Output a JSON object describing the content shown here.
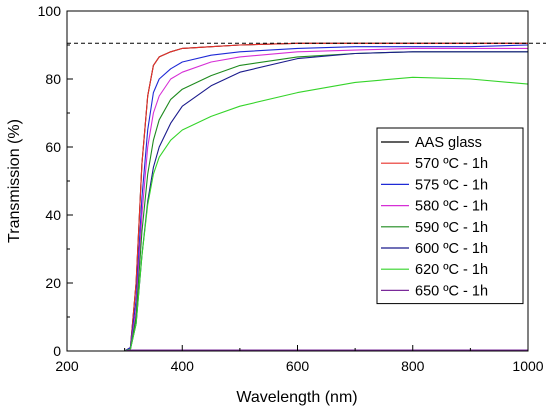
{
  "chart_data": {
    "type": "line",
    "xlabel": "Wavelength (nm)",
    "ylabel": "Transmission (%)",
    "xlim": [
      200,
      1000
    ],
    "ylim": [
      0,
      100
    ],
    "x_ticks": [
      200,
      400,
      600,
      800,
      1000
    ],
    "y_ticks": [
      0,
      20,
      40,
      60,
      80,
      100
    ],
    "reference_line": {
      "y": 90.5,
      "style": "dashed",
      "color": "#000000"
    },
    "legend_position": "right-center",
    "series": [
      {
        "name": "AAS glass",
        "color": "#000000",
        "x": [
          200,
          300,
          310,
          320,
          330,
          340,
          350,
          360,
          380,
          400,
          450,
          500,
          600,
          700,
          800,
          900,
          1000
        ],
        "y": [
          0,
          0,
          1,
          20,
          55,
          75,
          84,
          86.5,
          88,
          89,
          89.5,
          90,
          90.5,
          90.5,
          90.5,
          90.5,
          90.5
        ]
      },
      {
        "name": "570 ºC - 1h",
        "color": "#e8312a",
        "x": [
          200,
          300,
          310,
          320,
          330,
          340,
          350,
          360,
          380,
          400,
          450,
          500,
          600,
          700,
          800,
          900,
          1000
        ],
        "y": [
          0,
          0,
          1,
          20,
          55,
          75,
          84,
          86.5,
          88,
          89,
          89.5,
          90,
          90.5,
          90.5,
          90.5,
          90.5,
          90.5
        ]
      },
      {
        "name": "575 ºC - 1h",
        "color": "#1f2ad6",
        "x": [
          200,
          300,
          310,
          320,
          330,
          340,
          350,
          360,
          380,
          400,
          450,
          500,
          600,
          700,
          800,
          900,
          1000
        ],
        "y": [
          0,
          0,
          1,
          15,
          45,
          65,
          76,
          80,
          83,
          85,
          87,
          88,
          89,
          89.5,
          89.5,
          89.5,
          90
        ]
      },
      {
        "name": "580 ºC - 1h",
        "color": "#d62fd6",
        "x": [
          200,
          300,
          310,
          320,
          330,
          340,
          350,
          360,
          380,
          400,
          450,
          500,
          600,
          700,
          800,
          900,
          1000
        ],
        "y": [
          0,
          0,
          0.5,
          12,
          40,
          60,
          70,
          75,
          80,
          82,
          85,
          86.5,
          88,
          88.5,
          89,
          89,
          89
        ]
      },
      {
        "name": "590 ºC - 1h",
        "color": "#1e8a1e",
        "x": [
          200,
          300,
          310,
          320,
          330,
          340,
          350,
          360,
          380,
          400,
          450,
          500,
          600,
          700,
          800,
          900,
          1000
        ],
        "y": [
          0,
          0,
          0.5,
          10,
          35,
          52,
          62,
          68,
          74,
          77,
          81,
          84,
          86.5,
          87.5,
          88,
          88,
          88
        ]
      },
      {
        "name": "600 ºC - 1h",
        "color": "#1b1b8c",
        "x": [
          200,
          300,
          310,
          320,
          330,
          340,
          350,
          360,
          380,
          400,
          450,
          500,
          600,
          700,
          800,
          900,
          1000
        ],
        "y": [
          0,
          0,
          0.5,
          8,
          28,
          44,
          54,
          60,
          67,
          72,
          78,
          82,
          86,
          87.5,
          88,
          88,
          88
        ]
      },
      {
        "name": "620 ºC - 1h",
        "color": "#35d42a",
        "x": [
          200,
          300,
          310,
          320,
          330,
          340,
          350,
          360,
          380,
          400,
          450,
          500,
          600,
          700,
          800,
          900,
          1000
        ],
        "y": [
          0,
          0,
          0.5,
          8,
          28,
          43,
          52,
          57,
          62,
          65,
          69,
          72,
          76,
          79,
          80.5,
          80,
          78.5
        ]
      },
      {
        "name": "650 ºC - 1h",
        "color": "#7a2a9a",
        "x": [
          200,
          300,
          310,
          320,
          330,
          340,
          350,
          360,
          380,
          400,
          450,
          500,
          600,
          700,
          800,
          900,
          1000
        ],
        "y": [
          0,
          0,
          0.3,
          0.3,
          0.3,
          0.3,
          0.3,
          0.3,
          0.3,
          0.3,
          0.3,
          0.3,
          0.3,
          0.3,
          0.3,
          0.3,
          0.3
        ]
      }
    ]
  }
}
